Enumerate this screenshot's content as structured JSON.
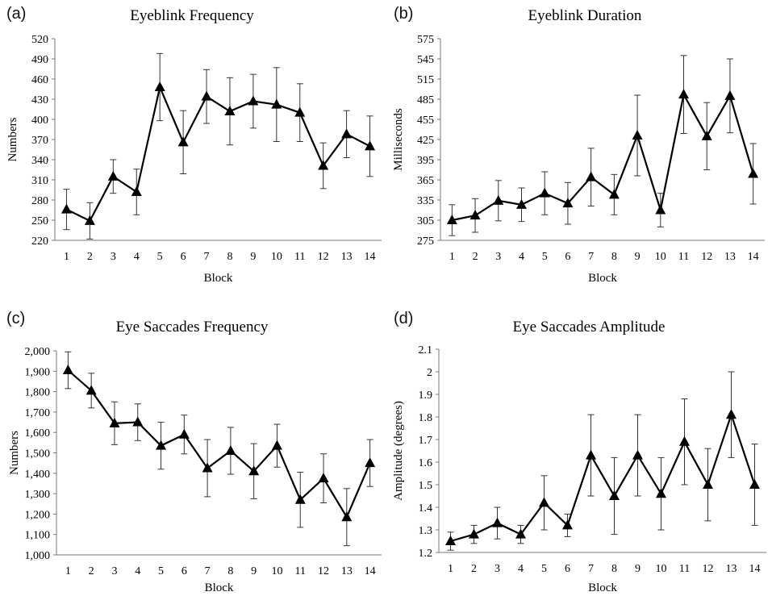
{
  "chart_data": [
    {
      "panel_label": "(a)",
      "type": "line",
      "title": "Eyeblink Frequency",
      "xlabel": "Block",
      "ylabel": "Numbers",
      "x": [
        1,
        2,
        3,
        4,
        5,
        6,
        7,
        8,
        9,
        10,
        11,
        12,
        13,
        14
      ],
      "yticks": [
        "220",
        "250",
        "280",
        "310",
        "340",
        "370",
        "400",
        "430",
        "460",
        "490",
        "520"
      ],
      "ylim": [
        220,
        520
      ],
      "series": [
        {
          "values": [
            266,
            249,
            315,
            292,
            448,
            366,
            434,
            412,
            427,
            422,
            410,
            331,
            378,
            360
          ],
          "error": [
            30,
            27,
            25,
            34,
            50,
            47,
            40,
            50,
            40,
            55,
            43,
            34,
            35,
            45
          ]
        }
      ],
      "marker": "triangle",
      "grid": false
    },
    {
      "panel_label": "(b)",
      "type": "line",
      "title": "Eyeblink Duration",
      "xlabel": "Block",
      "ylabel": "Milliseconds",
      "x": [
        1,
        2,
        3,
        4,
        5,
        6,
        7,
        8,
        9,
        10,
        11,
        12,
        13,
        14
      ],
      "yticks": [
        "275",
        "305",
        "335",
        "365",
        "395",
        "425",
        "455",
        "485",
        "515",
        "545",
        "575"
      ],
      "ylim": [
        275,
        575
      ],
      "series": [
        {
          "values": [
            305,
            312,
            334,
            328,
            345,
            330,
            369,
            343,
            431,
            320,
            492,
            430,
            490,
            374
          ],
          "error": [
            23,
            25,
            30,
            25,
            32,
            31,
            43,
            30,
            60,
            25,
            58,
            50,
            55,
            45
          ]
        }
      ],
      "marker": "triangle",
      "grid": false
    },
    {
      "panel_label": "(c)",
      "type": "line",
      "title": "Eye Saccades Frequency",
      "xlabel": "Block",
      "ylabel": "Numbers",
      "x": [
        1,
        2,
        3,
        4,
        5,
        6,
        7,
        8,
        9,
        10,
        11,
        12,
        13,
        14
      ],
      "yticks": [
        "1,000",
        "1,100",
        "1,200",
        "1,300",
        "1,400",
        "1,500",
        "1,600",
        "1,700",
        "1,800",
        "1,900",
        "2,000"
      ],
      "ylim": [
        1000,
        2000
      ],
      "series": [
        {
          "values": [
            1905,
            1805,
            1645,
            1650,
            1535,
            1590,
            1425,
            1510,
            1410,
            1535,
            1270,
            1375,
            1185,
            1450
          ],
          "error": [
            90,
            85,
            105,
            90,
            115,
            95,
            140,
            115,
            135,
            105,
            135,
            120,
            140,
            115
          ]
        }
      ],
      "marker": "triangle",
      "grid": false
    },
    {
      "panel_label": "(d)",
      "type": "line",
      "title": "Eye Saccades Amplitude",
      "xlabel": "Block",
      "ylabel": "Amplitude (degrees)",
      "x": [
        1,
        2,
        3,
        4,
        5,
        6,
        7,
        8,
        9,
        10,
        11,
        12,
        13,
        14
      ],
      "yticks": [
        "1.2",
        "1.3",
        "1.4",
        "1.5",
        "1.6",
        "1.7",
        "1.8",
        "1.9",
        "2",
        "2.1"
      ],
      "ylim": [
        1.2,
        2.1
      ],
      "series": [
        {
          "values": [
            1.25,
            1.28,
            1.33,
            1.28,
            1.42,
            1.32,
            1.63,
            1.45,
            1.63,
            1.46,
            1.69,
            1.5,
            1.81,
            1.5
          ],
          "error": [
            0.04,
            0.04,
            0.07,
            0.04,
            0.12,
            0.05,
            0.18,
            0.17,
            0.18,
            0.16,
            0.19,
            0.16,
            0.19,
            0.18
          ]
        }
      ],
      "marker": "triangle",
      "grid": false
    }
  ]
}
